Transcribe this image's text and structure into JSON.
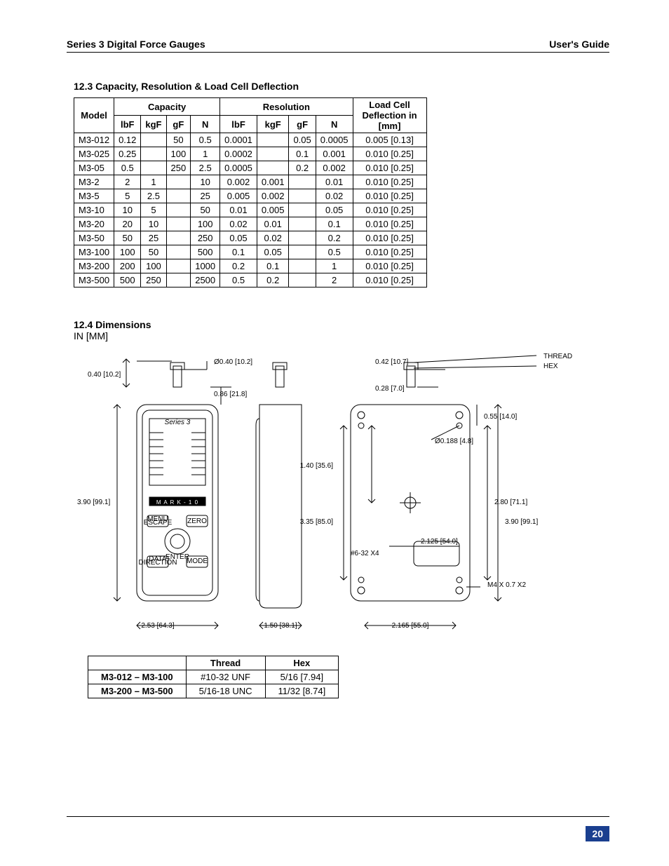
{
  "header": {
    "left": "Series 3 Digital Force Gauges",
    "right": "User's Guide"
  },
  "section_123": {
    "title": "12.3 Capacity, Resolution & Load Cell Deflection",
    "group_headers": {
      "model": "Model",
      "capacity": "Capacity",
      "resolution": "Resolution",
      "loadcell": "Load Cell Deflection in [mm]"
    },
    "unit_headers": [
      "lbF",
      "kgF",
      "gF",
      "N",
      "lbF",
      "kgF",
      "gF",
      "N"
    ],
    "rows": [
      {
        "model": "M3-012",
        "lbF": "0.12",
        "kgF": "",
        "gF": "50",
        "N": "0.5",
        "rlbF": "0.0001",
        "rkgF": "",
        "rgF": "0.05",
        "rN": "0.0005",
        "defl": "0.005 [0.13]"
      },
      {
        "model": "M3-025",
        "lbF": "0.25",
        "kgF": "",
        "gF": "100",
        "N": "1",
        "rlbF": "0.0002",
        "rkgF": "",
        "rgF": "0.1",
        "rN": "0.001",
        "defl": "0.010 [0.25]"
      },
      {
        "model": "M3-05",
        "lbF": "0.5",
        "kgF": "",
        "gF": "250",
        "N": "2.5",
        "rlbF": "0.0005",
        "rkgF": "",
        "rgF": "0.2",
        "rN": "0.002",
        "defl": "0.010 [0.25]"
      },
      {
        "model": "M3-2",
        "lbF": "2",
        "kgF": "1",
        "gF": "",
        "N": "10",
        "rlbF": "0.002",
        "rkgF": "0.001",
        "rgF": "",
        "rN": "0.01",
        "defl": "0.010 [0.25]"
      },
      {
        "model": "M3-5",
        "lbF": "5",
        "kgF": "2.5",
        "gF": "",
        "N": "25",
        "rlbF": "0.005",
        "rkgF": "0.002",
        "rgF": "",
        "rN": "0.02",
        "defl": "0.010 [0.25]"
      },
      {
        "model": "M3-10",
        "lbF": "10",
        "kgF": "5",
        "gF": "",
        "N": "50",
        "rlbF": "0.01",
        "rkgF": "0.005",
        "rgF": "",
        "rN": "0.05",
        "defl": "0.010 [0.25]"
      },
      {
        "model": "M3-20",
        "lbF": "20",
        "kgF": "10",
        "gF": "",
        "N": "100",
        "rlbF": "0.02",
        "rkgF": "0.01",
        "rgF": "",
        "rN": "0.1",
        "defl": "0.010 [0.25]"
      },
      {
        "model": "M3-50",
        "lbF": "50",
        "kgF": "25",
        "gF": "",
        "N": "250",
        "rlbF": "0.05",
        "rkgF": "0.02",
        "rgF": "",
        "rN": "0.2",
        "defl": "0.010 [0.25]"
      },
      {
        "model": "M3-100",
        "lbF": "100",
        "kgF": "50",
        "gF": "",
        "N": "500",
        "rlbF": "0.1",
        "rkgF": "0.05",
        "rgF": "",
        "rN": "0.5",
        "defl": "0.010 [0.25]"
      },
      {
        "model": "M3-200",
        "lbF": "200",
        "kgF": "100",
        "gF": "",
        "N": "1000",
        "rlbF": "0.2",
        "rkgF": "0.1",
        "rgF": "",
        "rN": "1",
        "defl": "0.010 [0.25]"
      },
      {
        "model": "M3-500",
        "lbF": "500",
        "kgF": "250",
        "gF": "",
        "N": "2500",
        "rlbF": "0.5",
        "rkgF": "0.2",
        "rgF": "",
        "rN": "2",
        "defl": "0.010 [0.25]"
      }
    ]
  },
  "section_124": {
    "title": "12.4 Dimensions",
    "subtitle": "IN [MM]",
    "diagram_labels": {
      "d1": "Ø0.40 [10.2]",
      "d2": "0.40 [10.2]",
      "d3": "0.86 [21.8]",
      "d4": "3.90 [99.1]",
      "d5": "2.53 [64.3]",
      "d6": "1.50 [38.1]",
      "d7": "0.42 [10.7]",
      "d8": "0.28 [7.0]",
      "d9": "1.40 [35.6]",
      "d10": "3.35 [85.0]",
      "d11": "#6-32 X4",
      "d12": "2.165 [55.0]",
      "thread": "THREAD",
      "hex": "HEX",
      "d13": "0.55 [14.0]",
      "d14": "Ø0.188 [4.8]",
      "d15": "2.80 [71.1]",
      "d16": "3.90 [99.1]",
      "d17": "2.125 [54.0]",
      "d18": "M4 X 0.7 X2",
      "series3": "Series 3",
      "mark10": "M A R K - 1 0",
      "menu": "MENU",
      "escape": "ESCAPE",
      "zero": "ZERO",
      "datadir": "DATA",
      "direction": "DIRECTION",
      "enter": "ENTER",
      "mode": "MODE"
    }
  },
  "thread_table": {
    "headers": [
      "",
      "Thread",
      "Hex"
    ],
    "rows": [
      {
        "range": "M3-012 – M3-100",
        "thread": "#10-32 UNF",
        "hex": "5/16 [7.94]"
      },
      {
        "range": "M3-200 – M3-500",
        "thread": "5/16-18 UNC",
        "hex": "11/32 [8.74]"
      }
    ]
  },
  "page_number": "20",
  "colors": {
    "pagenum_bg": "#1a3f8f",
    "text": "#000000"
  }
}
